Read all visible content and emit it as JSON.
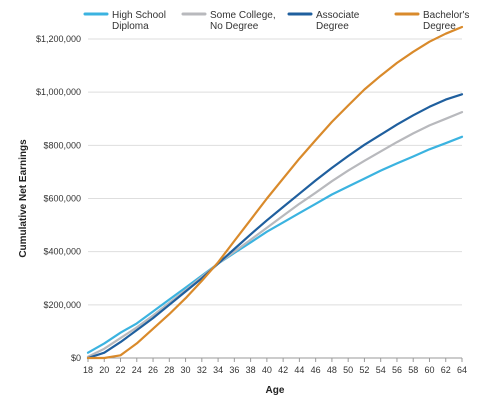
{
  "chart_data": {
    "type": "line",
    "title": "",
    "xlabel": "Age",
    "ylabel": "Cumulative Net Earnings",
    "xlim": [
      18,
      64
    ],
    "ylim": [
      0,
      1200000
    ],
    "xticks": [
      18,
      20,
      22,
      24,
      26,
      28,
      30,
      32,
      34,
      36,
      38,
      40,
      42,
      44,
      46,
      48,
      50,
      52,
      54,
      56,
      58,
      60,
      62,
      64
    ],
    "yticks": [
      0,
      200000,
      400000,
      600000,
      800000,
      1000000,
      1200000
    ],
    "ytick_labels": [
      "$0",
      "$200,000",
      "$400,000",
      "$600,000",
      "$800,000",
      "$1,000,000",
      "$1,200,000"
    ],
    "grid": "horizontal",
    "legend_position": "top",
    "x": [
      18,
      20,
      22,
      24,
      26,
      28,
      30,
      32,
      34,
      36,
      38,
      40,
      42,
      44,
      46,
      48,
      50,
      52,
      54,
      56,
      58,
      60,
      62,
      64
    ],
    "series": [
      {
        "name_lines": [
          "High School",
          "Diploma"
        ],
        "color": "#3bb3e0",
        "values": [
          20000,
          55000,
          95000,
          130000,
          175000,
          220000,
          265000,
          310000,
          355000,
          395000,
          435000,
          475000,
          510000,
          545000,
          580000,
          615000,
          645000,
          675000,
          705000,
          732000,
          758000,
          785000,
          808000,
          832000
        ]
      },
      {
        "name_lines": [
          "Some College,",
          "No Degree"
        ],
        "color": "#b8b9bd",
        "values": [
          5000,
          35000,
          75000,
          115000,
          160000,
          208000,
          255000,
          305000,
          355000,
          400000,
          445000,
          490000,
          535000,
          580000,
          622000,
          665000,
          705000,
          742000,
          777000,
          812000,
          845000,
          875000,
          900000,
          925000
        ]
      },
      {
        "name_lines": [
          "Associate",
          "Degree"
        ],
        "color": "#1f5f9e",
        "values": [
          0,
          20000,
          60000,
          105000,
          150000,
          200000,
          250000,
          300000,
          355000,
          410000,
          465000,
          518000,
          568000,
          618000,
          668000,
          715000,
          760000,
          802000,
          840000,
          878000,
          913000,
          945000,
          972000,
          992000
        ]
      },
      {
        "name_lines": [
          "Bachelor's",
          "Degree"
        ],
        "color": "#d98a2b",
        "values": [
          0,
          0,
          10000,
          55000,
          110000,
          165000,
          225000,
          290000,
          360000,
          440000,
          520000,
          600000,
          675000,
          750000,
          820000,
          888000,
          950000,
          1010000,
          1062000,
          1110000,
          1152000,
          1190000,
          1220000,
          1245000
        ]
      }
    ]
  }
}
